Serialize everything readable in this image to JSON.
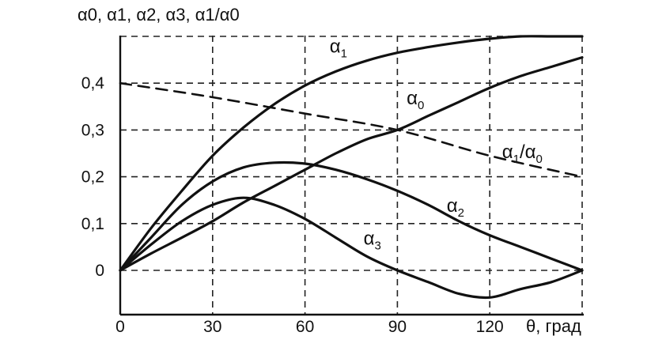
{
  "chart_data": {
    "type": "line",
    "ylabel": "α0, α1, α2, α3, α1/α0",
    "xlabel": "θ, град",
    "xlim": [
      0,
      150
    ],
    "ylim": [
      -0.07,
      0.5
    ],
    "x_ticks": [
      "0",
      "30",
      "60",
      "90",
      "120"
    ],
    "y_ticks": [
      "0",
      "0,1",
      "0,2",
      "0,3",
      "0,4"
    ],
    "grid": "dashed",
    "series": [
      {
        "name": "α1",
        "line_style": "solid",
        "x": [
          0,
          10,
          20,
          30,
          40,
          50,
          60,
          70,
          80,
          90,
          100,
          110,
          120,
          130,
          140,
          150
        ],
        "y": [
          0,
          0.09,
          0.17,
          0.245,
          0.305,
          0.355,
          0.395,
          0.425,
          0.448,
          0.465,
          0.477,
          0.487,
          0.495,
          0.5,
          0.5,
          0.5
        ]
      },
      {
        "name": "α0",
        "line_style": "solid",
        "x": [
          0,
          10,
          20,
          30,
          40,
          50,
          60,
          70,
          80,
          90,
          100,
          110,
          120,
          130,
          140,
          150
        ],
        "y": [
          0,
          0.036,
          0.07,
          0.105,
          0.145,
          0.18,
          0.215,
          0.25,
          0.28,
          0.3,
          0.33,
          0.36,
          0.39,
          0.415,
          0.435,
          0.455
        ]
      },
      {
        "name": "α2",
        "line_style": "solid",
        "x": [
          0,
          10,
          20,
          30,
          40,
          50,
          60,
          70,
          80,
          90,
          100,
          110,
          120,
          130,
          140,
          150
        ],
        "y": [
          0,
          0.07,
          0.14,
          0.19,
          0.22,
          0.23,
          0.228,
          0.215,
          0.195,
          0.17,
          0.14,
          0.105,
          0.075,
          0.05,
          0.025,
          0.0
        ]
      },
      {
        "name": "α3",
        "line_style": "solid",
        "x": [
          0,
          10,
          20,
          30,
          40,
          50,
          60,
          70,
          80,
          90,
          100,
          110,
          120,
          130,
          140,
          150
        ],
        "y": [
          0,
          0.055,
          0.105,
          0.14,
          0.155,
          0.14,
          0.11,
          0.07,
          0.03,
          0.0,
          -0.025,
          -0.05,
          -0.058,
          -0.04,
          -0.025,
          0.0
        ]
      },
      {
        "name": "α1/α0",
        "line_style": "dashed",
        "x": [
          0,
          30,
          60,
          90,
          120,
          150
        ],
        "y": [
          0.4,
          0.37,
          0.335,
          0.3,
          0.245,
          0.2
        ]
      }
    ],
    "series_labels": [
      {
        "base": "α",
        "sub": "1",
        "at_x": 68,
        "at_y": 0.465
      },
      {
        "base": "α",
        "sub": "0",
        "at_x": 93,
        "at_y": 0.355
      },
      {
        "base": "α",
        "sub": "1",
        "rest": "/α",
        "sub2": "0",
        "at_x": 124,
        "at_y": 0.24
      },
      {
        "base": "α",
        "sub": "2",
        "at_x": 106,
        "at_y": 0.125
      },
      {
        "base": "α",
        "sub": "3",
        "at_x": 79,
        "at_y": 0.055
      }
    ]
  }
}
